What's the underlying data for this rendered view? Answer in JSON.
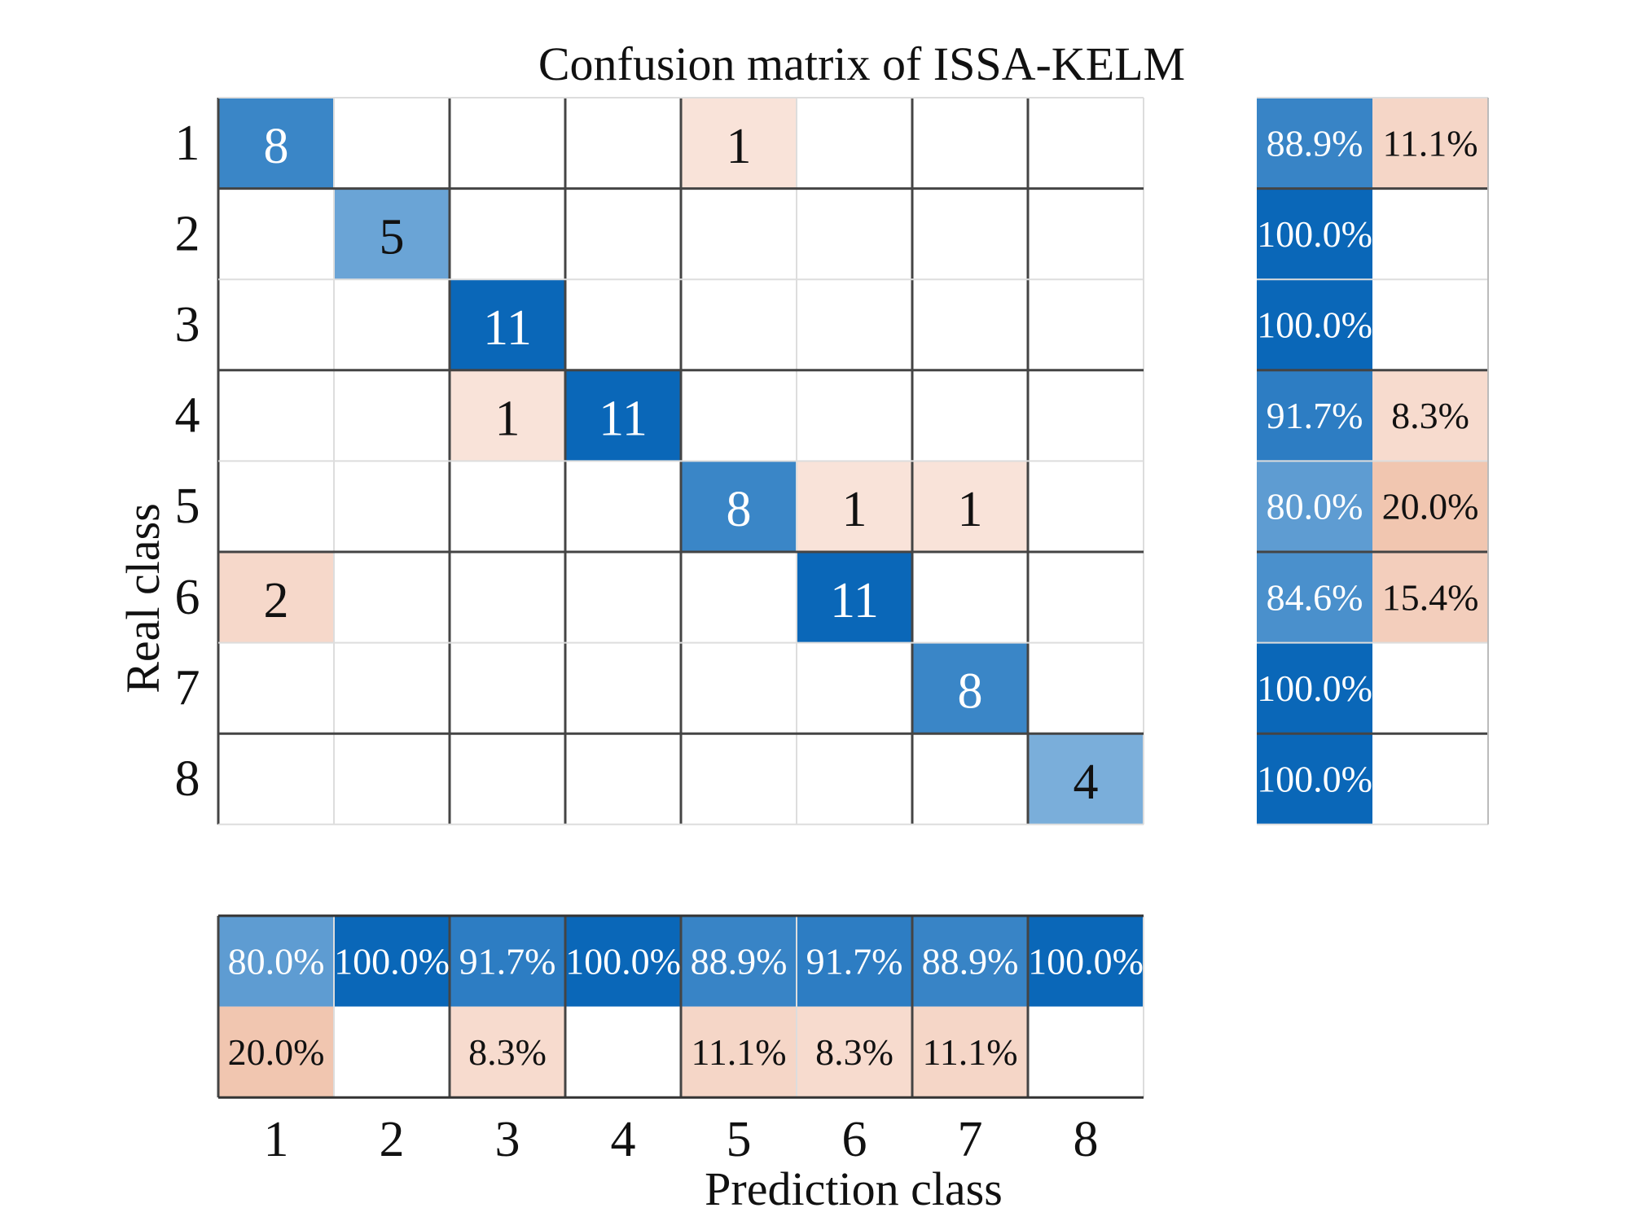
{
  "chart_data": {
    "type": "heatmap",
    "title": "Confusion matrix of ISSA-KELM",
    "xlabel": "Prediction class",
    "ylabel": "Real class",
    "classes": [
      "1",
      "2",
      "3",
      "4",
      "5",
      "6",
      "7",
      "8"
    ],
    "matrix": [
      [
        8,
        0,
        0,
        0,
        1,
        0,
        0,
        0
      ],
      [
        0,
        5,
        0,
        0,
        0,
        0,
        0,
        0
      ],
      [
        0,
        0,
        11,
        0,
        0,
        0,
        0,
        0
      ],
      [
        0,
        0,
        1,
        11,
        0,
        0,
        0,
        0
      ],
      [
        0,
        0,
        0,
        0,
        8,
        1,
        1,
        0
      ],
      [
        2,
        0,
        0,
        0,
        0,
        11,
        0,
        0
      ],
      [
        0,
        0,
        0,
        0,
        0,
        0,
        8,
        0
      ],
      [
        0,
        0,
        0,
        0,
        0,
        0,
        0,
        4
      ]
    ],
    "row_summary": {
      "correct": [
        "88.9%",
        "100.0%",
        "100.0%",
        "91.7%",
        "80.0%",
        "84.6%",
        "100.0%",
        "100.0%"
      ],
      "incorrect": [
        "11.1%",
        "",
        "",
        "8.3%",
        "20.0%",
        "15.4%",
        "",
        ""
      ]
    },
    "column_summary": {
      "correct": [
        "80.0%",
        "100.0%",
        "91.7%",
        "100.0%",
        "88.9%",
        "91.7%",
        "88.9%",
        "100.0%"
      ],
      "incorrect": [
        "20.0%",
        "",
        "8.3%",
        "",
        "11.1%",
        "8.3%",
        "11.1%",
        ""
      ]
    },
    "colors": {
      "correct_dark": "#0a67b8",
      "correct_light": "#c4ddf1",
      "error_light": "#fbeae3",
      "error_dark": "#f1c6b0"
    }
  }
}
